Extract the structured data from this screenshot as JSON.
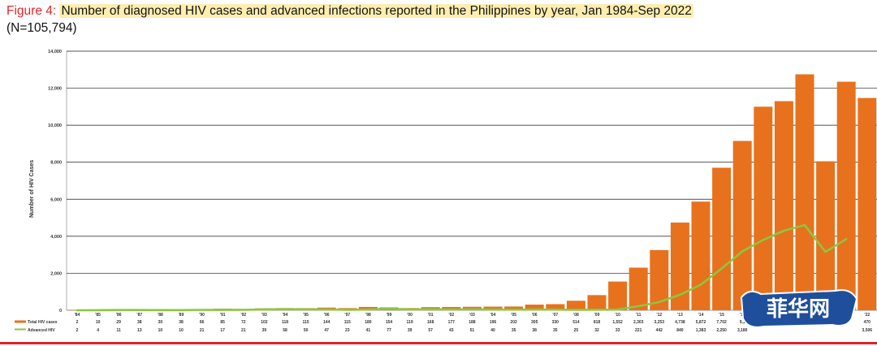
{
  "title": {
    "label": "Figure 4:",
    "main": "Number of diagnosed HIV cases and advanced infections reported in the Philippines by year, Jan 1984-Sep 2022",
    "sub": "(N=105,794)"
  },
  "watermark_text": "菲华网",
  "colors": {
    "bars": "#e8711e",
    "line": "#8dc63f",
    "axis_text": "#333333",
    "accent_rule": "#e0242a"
  },
  "chart_data": {
    "type": "bar",
    "title": "Number of diagnosed HIV cases and advanced infections reported in the Philippines by year, Jan 1984-Sep 2022",
    "ylabel": "Number of HIV Cases",
    "xlabel": "",
    "ylim": [
      0,
      14000
    ],
    "yticks": [
      0,
      2000,
      4000,
      6000,
      8000,
      10000,
      12000,
      14000
    ],
    "ytick_labels": [
      "0",
      "2,000",
      "4,000",
      "6,000",
      "8,000",
      "10,000",
      "12,000",
      "14,000"
    ],
    "grid": true,
    "legend": "bottom-left table",
    "categories": [
      "'84",
      "'85",
      "'86",
      "'87",
      "'88",
      "'89",
      "'90",
      "'91",
      "'92",
      "'93",
      "'94",
      "'95",
      "'96",
      "'97",
      "'98",
      "'99",
      "'00",
      "'01",
      "'02",
      "'03",
      "'04",
      "'05",
      "'06",
      "'07",
      "'08",
      "'09",
      "'10",
      "'11",
      "'12",
      "'13",
      "'14",
      "'15",
      "'16",
      "'17",
      "'18",
      "'19",
      "'20",
      "'21",
      "'22"
    ],
    "series": [
      {
        "name": "Total HIV cases",
        "type": "bar",
        "values": [
          2,
          10,
          29,
          38,
          30,
          38,
          66,
          85,
          72,
          102,
          118,
          115,
          144,
          115,
          180,
          154,
          119,
          168,
          177,
          188,
          196,
          202,
          305,
          330,
          514,
          818,
          1552,
          2303,
          3253,
          4738,
          5872,
          7702,
          9150,
          11000,
          11300,
          12750,
          8050,
          12350,
          11470
        ],
        "labels": [
          "2",
          "10",
          "29",
          "38",
          "30",
          "38",
          "66",
          "85",
          "72",
          "102",
          "118",
          "115",
          "144",
          "115",
          "180",
          "154",
          "119",
          "168",
          "177",
          "188",
          "196",
          "202",
          "305",
          "330",
          "514",
          "818",
          "1,552",
          "2,303",
          "3,253",
          "4,738",
          "5,872",
          "7,702",
          "9,1",
          "",
          "",
          "",
          "",
          "",
          "470"
        ]
      },
      {
        "name": "Advanced HIV",
        "type": "line",
        "values": [
          2,
          4,
          11,
          13,
          10,
          10,
          21,
          17,
          21,
          39,
          58,
          50,
          47,
          23,
          41,
          77,
          39,
          57,
          43,
          51,
          40,
          35,
          38,
          35,
          25,
          32,
          33,
          221,
          442,
          840,
          1383,
          2250,
          3180,
          3800,
          4300,
          4600,
          3150,
          3850,
          3506
        ],
        "labels": [
          "2",
          "4",
          "11",
          "13",
          "10",
          "10",
          "21",
          "17",
          "21",
          "39",
          "58",
          "50",
          "47",
          "23",
          "41",
          "77",
          "39",
          "57",
          "43",
          "51",
          "40",
          "35",
          "38",
          "35",
          "25",
          "32",
          "33",
          "221",
          "442",
          "840",
          "1,383",
          "2,250",
          "3,180",
          "",
          "",
          "",
          "",
          "",
          "3,506"
        ],
        "line_points_drawn": 38
      }
    ]
  }
}
